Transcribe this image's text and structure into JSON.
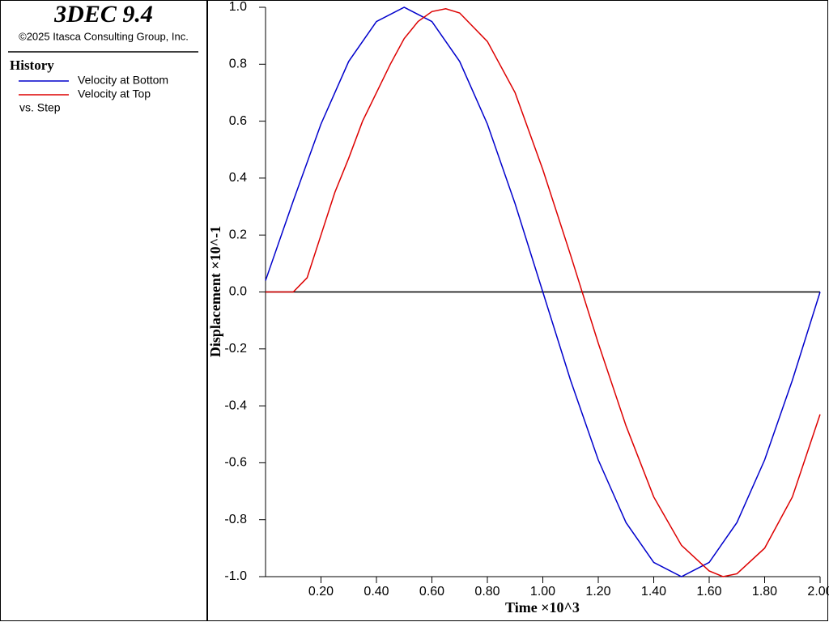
{
  "panel": {
    "app_title": "3DEC 9.4",
    "copyright": "©2025 Itasca Consulting Group, Inc.",
    "section": "History",
    "vs_label": "vs. Step"
  },
  "chart_data": {
    "type": "line",
    "xlabel": "Time ×10^3",
    "ylabel": "Displacement ×10^-1",
    "xlim": [
      0,
      2
    ],
    "ylim": [
      -1,
      1
    ],
    "xticks": [
      {
        "value": 0.2,
        "label": "0.20"
      },
      {
        "value": 0.4,
        "label": "0.40"
      },
      {
        "value": 0.6,
        "label": "0.60"
      },
      {
        "value": 0.8,
        "label": "0.80"
      },
      {
        "value": 1.0,
        "label": "1.00"
      },
      {
        "value": 1.2,
        "label": "1.20"
      },
      {
        "value": 1.4,
        "label": "1.40"
      },
      {
        "value": 1.6,
        "label": "1.60"
      },
      {
        "value": 1.8,
        "label": "1.80"
      },
      {
        "value": 2.0,
        "label": "2.00"
      }
    ],
    "yticks": [
      {
        "value": 1,
        "label": "1.0"
      },
      0.8,
      0.6,
      0.4,
      0.2,
      {
        "value": 0,
        "label": "0.0"
      },
      -0.2,
      -0.4,
      -0.6,
      -0.8,
      {
        "value": -1,
        "label": "-1.0"
      }
    ],
    "series": [
      {
        "name": "Velocity at Bottom",
        "color": "#0000cc",
        "x": [
          0,
          0.1,
          0.2,
          0.3,
          0.4,
          0.5,
          0.6,
          0.7,
          0.8,
          0.9,
          1.0,
          1.1,
          1.2,
          1.3,
          1.4,
          1.5,
          1.6,
          1.7,
          1.8,
          1.9,
          2.0
        ],
        "values": [
          0.04,
          0.32,
          0.59,
          0.81,
          0.95,
          1.0,
          0.95,
          0.81,
          0.59,
          0.31,
          0.0,
          -0.31,
          -0.59,
          -0.81,
          -0.95,
          -1.0,
          -0.95,
          -0.81,
          -0.59,
          -0.31,
          0.0
        ]
      },
      {
        "name": "Velocity at Top",
        "color": "#dd0000",
        "x": [
          0,
          0.05,
          0.1,
          0.15,
          0.2,
          0.25,
          0.3,
          0.35,
          0.4,
          0.45,
          0.5,
          0.55,
          0.6,
          0.65,
          0.7,
          0.8,
          0.9,
          1.0,
          1.1,
          1.2,
          1.3,
          1.4,
          1.5,
          1.6,
          1.65,
          1.7,
          1.8,
          1.9,
          2.0
        ],
        "values": [
          0,
          0,
          0.0,
          0.05,
          0.2,
          0.35,
          0.47,
          0.6,
          0.7,
          0.8,
          0.89,
          0.95,
          0.985,
          0.995,
          0.98,
          0.88,
          0.7,
          0.43,
          0.13,
          -0.18,
          -0.47,
          -0.72,
          -0.89,
          -0.98,
          -1.0,
          -0.99,
          -0.9,
          -0.72,
          -0.43
        ]
      }
    ]
  }
}
